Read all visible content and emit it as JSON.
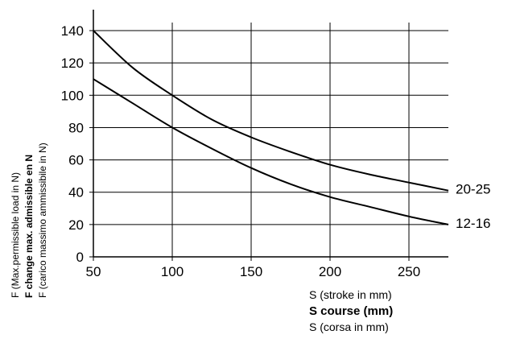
{
  "chart_data": {
    "type": "line",
    "xlim": [
      50,
      275
    ],
    "ylim": [
      0,
      145
    ],
    "xticks": [
      50,
      100,
      150,
      200,
      250
    ],
    "yticks": [
      0,
      20,
      40,
      60,
      80,
      100,
      120,
      140
    ],
    "grid": true,
    "xlabel_lines": [
      "S (stroke in mm)",
      "S course (mm)",
      "S (corsa in mm)"
    ],
    "ylabel_lines": [
      "F (Max.permissible load in N)",
      "F change max. admissible en N",
      "F (carico massimo ammissibile in N)"
    ],
    "series": [
      {
        "name": "20-25",
        "x": [
          50,
          75,
          100,
          125,
          150,
          175,
          200,
          225,
          250,
          275
        ],
        "y": [
          140,
          117,
          100,
          85,
          74,
          65,
          57,
          51,
          46,
          41
        ]
      },
      {
        "name": "12-16",
        "x": [
          50,
          75,
          100,
          125,
          150,
          175,
          200,
          225,
          250,
          275
        ],
        "y": [
          110,
          95,
          80,
          67,
          55,
          45,
          37,
          31,
          25,
          20
        ]
      }
    ]
  }
}
